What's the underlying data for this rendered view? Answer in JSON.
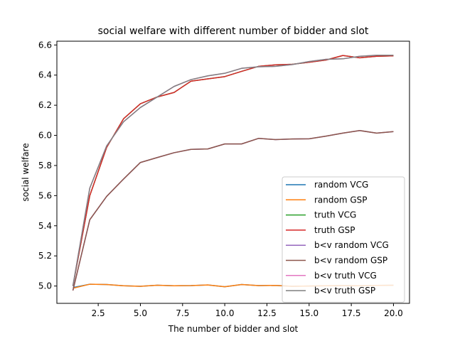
{
  "chart_data": {
    "type": "line",
    "title": "social welfare with different number of bidder and slot",
    "xlabel": "The number of bidder and slot",
    "ylabel": "social welfare",
    "xlim": [
      0.05,
      20.95
    ],
    "ylim": [
      4.885,
      6.625
    ],
    "xticks": [
      2.5,
      5.0,
      7.5,
      10.0,
      12.5,
      15.0,
      17.5,
      20.0
    ],
    "xtick_labels": [
      "2.5",
      "5.0",
      "7.5",
      "10.0",
      "12.5",
      "15.0",
      "17.5",
      "20.0"
    ],
    "yticks": [
      5.0,
      5.2,
      5.4,
      5.6,
      5.8,
      6.0,
      6.2,
      6.4,
      6.6
    ],
    "ytick_labels": [
      "5.0",
      "5.2",
      "5.4",
      "5.6",
      "5.8",
      "6.0",
      "6.2",
      "6.4",
      "6.6"
    ],
    "legend_position": "lower-right",
    "grid": false,
    "x": [
      1,
      2,
      3,
      4,
      5,
      6,
      7,
      8,
      9,
      10,
      11,
      12,
      13,
      14,
      15,
      16,
      17,
      18,
      19,
      20
    ],
    "series": [
      {
        "name": "random VCG",
        "color": "#1f77b4",
        "values": [
          4.99,
          5.012,
          5.01,
          5.002,
          4.998,
          5.005,
          5.002,
          5.003,
          5.007,
          4.995,
          5.01,
          5.003,
          5.004,
          4.998,
          5.0,
          5.002,
          5.003,
          5.002,
          5.004,
          5.005
        ]
      },
      {
        "name": "random GSP",
        "color": "#ff7f0e",
        "values": [
          4.985,
          5.012,
          5.01,
          5.002,
          4.998,
          5.005,
          5.002,
          5.003,
          5.007,
          4.995,
          5.01,
          5.003,
          5.004,
          4.998,
          5.0,
          5.002,
          5.003,
          5.002,
          5.004,
          5.005
        ]
      },
      {
        "name": "truth VCG",
        "color": "#2ca02c",
        "values": [
          5.0,
          5.6,
          5.92,
          6.11,
          6.21,
          6.255,
          6.285,
          6.36,
          6.375,
          6.39,
          6.425,
          6.458,
          6.468,
          6.472,
          6.485,
          6.5,
          6.53,
          6.515,
          6.525,
          6.528
        ]
      },
      {
        "name": "truth GSP",
        "color": "#d62728",
        "values": [
          5.0,
          5.6,
          5.92,
          6.11,
          6.21,
          6.255,
          6.285,
          6.36,
          6.375,
          6.39,
          6.425,
          6.458,
          6.468,
          6.472,
          6.485,
          6.5,
          6.53,
          6.515,
          6.525,
          6.528
        ]
      },
      {
        "name": "b<v random VCG",
        "color": "#9467bd",
        "values": [
          4.97,
          5.44,
          5.595,
          5.71,
          5.82,
          5.853,
          5.885,
          5.907,
          5.91,
          5.943,
          5.943,
          5.98,
          5.972,
          5.976,
          5.977,
          5.995,
          6.015,
          6.032,
          6.015,
          6.025
        ]
      },
      {
        "name": "b<v random GSP",
        "color": "#8c564b",
        "values": [
          4.97,
          5.44,
          5.595,
          5.71,
          5.82,
          5.853,
          5.885,
          5.907,
          5.91,
          5.943,
          5.943,
          5.98,
          5.972,
          5.976,
          5.977,
          5.995,
          6.015,
          6.032,
          6.015,
          6.025
        ]
      },
      {
        "name": "b<v truth VCG",
        "color": "#e377c2",
        "values": [
          5.0,
          5.65,
          5.93,
          6.09,
          6.185,
          6.255,
          6.325,
          6.37,
          6.395,
          6.412,
          6.445,
          6.455,
          6.458,
          6.47,
          6.49,
          6.505,
          6.508,
          6.525,
          6.532,
          6.532
        ]
      },
      {
        "name": "b<v truth GSP",
        "color": "#7f7f7f",
        "values": [
          5.0,
          5.65,
          5.93,
          6.09,
          6.185,
          6.255,
          6.325,
          6.37,
          6.395,
          6.412,
          6.445,
          6.455,
          6.458,
          6.47,
          6.49,
          6.505,
          6.508,
          6.525,
          6.532,
          6.532
        ]
      }
    ]
  }
}
